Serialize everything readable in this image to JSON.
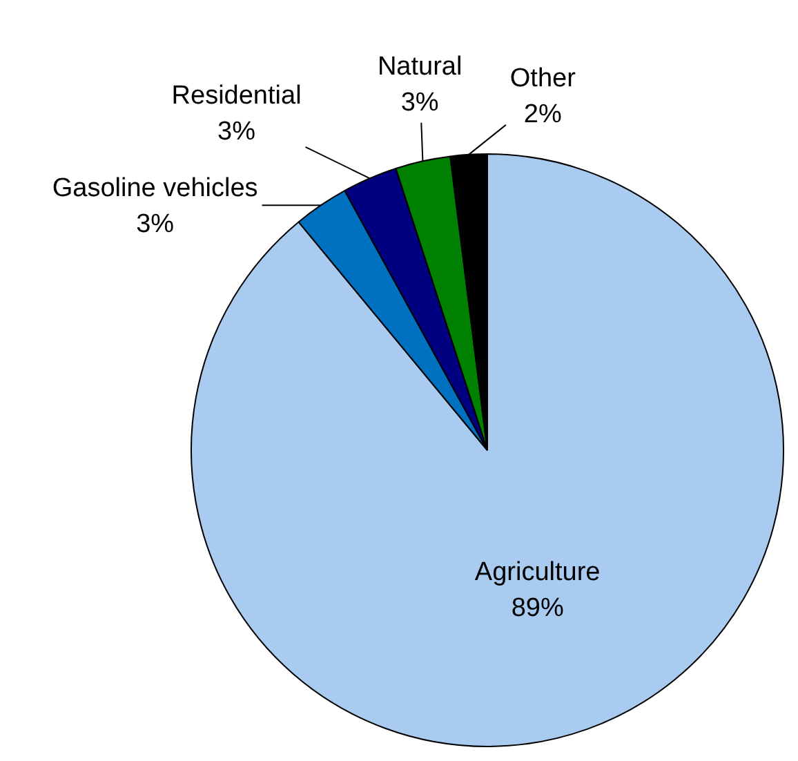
{
  "chart_data": {
    "type": "pie",
    "categories": [
      "Agriculture",
      "Gasoline vehicles",
      "Residential",
      "Natural",
      "Other"
    ],
    "values": [
      89,
      3,
      3,
      3,
      2
    ],
    "colors": [
      "#a9cbf0",
      "#0070c0",
      "#000080",
      "#008000",
      "#000000"
    ],
    "value_labels": [
      "89%",
      "3%",
      "3%",
      "3%",
      "2%"
    ],
    "legend": false
  }
}
